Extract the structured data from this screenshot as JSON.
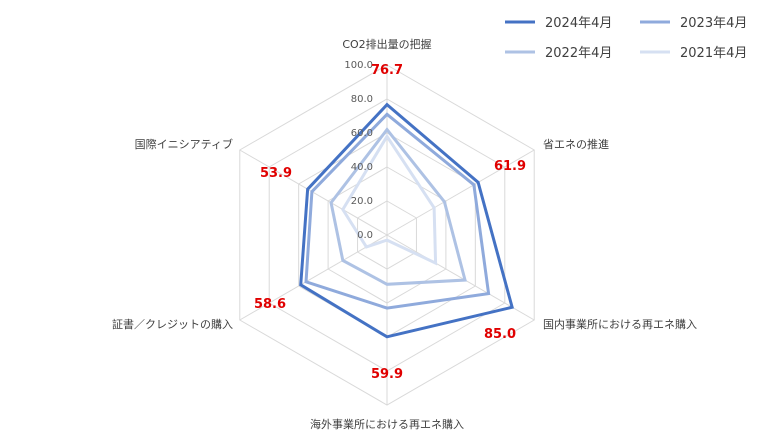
{
  "chart_data": {
    "type": "radar",
    "title": "",
    "axes": [
      "CO2排出量の把握",
      "省エネの推進",
      "国内事業所における再エネ購入",
      "海外事業所における再エネ購入",
      "証書／クレジットの購入",
      "国際イニシアティブ"
    ],
    "ticks": [
      "0.0",
      "20.0",
      "40.0",
      "60.0",
      "80.0",
      "100.0"
    ],
    "rlim": [
      0,
      100
    ],
    "grid": true,
    "legend_position": "top-right",
    "series": [
      {
        "name": "2024年4月",
        "color": "#4472c4",
        "values": [
          76.7,
          61.9,
          85.0,
          59.9,
          58.6,
          53.9
        ]
      },
      {
        "name": "2023年4月",
        "color": "#8faadc",
        "values": [
          71,
          59,
          69,
          43,
          55,
          51
        ]
      },
      {
        "name": "2022年4月",
        "color": "#aec2e4",
        "values": [
          62,
          39,
          53,
          29,
          30,
          38
        ]
      },
      {
        "name": "2021年4月",
        "color": "#d6e0f2",
        "values": [
          58,
          32,
          33,
          3,
          14,
          30
        ]
      }
    ],
    "value_labels": [
      "76.7",
      "61.9",
      "85.0",
      "59.9",
      "58.6",
      "53.9"
    ],
    "value_label_color": "#e00000"
  }
}
